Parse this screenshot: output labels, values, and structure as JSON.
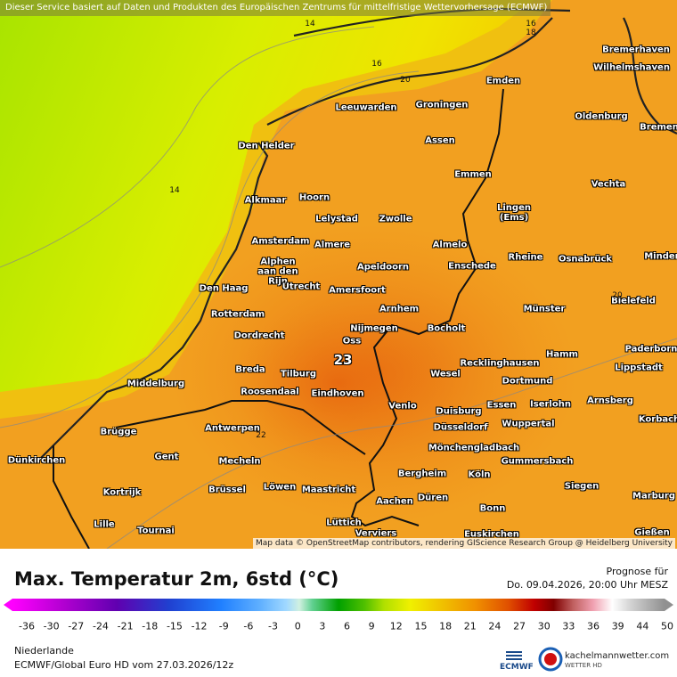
{
  "notice": "Dieser Service basiert auf Daten und Produkten des Europäischen Zentrums für mittelfristige Wettervorhersage (ECMWF)",
  "attribution": "Map data © OpenStreetMap contributors, rendering GIScience Research Group @ Heidelberg University",
  "map_labels": {
    "cities": [
      "Bremerhaven",
      "Wilhelmshaven",
      "Emden",
      "Oldenburg",
      "Bremen",
      "Groningen",
      "Leeuwarden",
      "Assen",
      "Den Helder",
      "Emmen",
      "Vechta",
      "Alkmaar",
      "Hoorn",
      "Lingen (Ems)",
      "Lelystad",
      "Zwolle",
      "Amsterdam",
      "Almere",
      "Almelo",
      "Rheine",
      "Osnabrück",
      "Minden",
      "Alphen aan den Rijn",
      "Apeldoorn",
      "Enschede",
      "Den Haag",
      "Utrecht",
      "Amersfoort",
      "Bielefeld",
      "Arnhem",
      "Münster",
      "Rotterdam",
      "Nijmegen",
      "Bocholt",
      "Dordrecht",
      "Oss",
      "Paderborn",
      "Hamm",
      "Breda",
      "Tilburg",
      "Recklinghausen",
      "Wesel",
      "Lippstadt",
      "Middelburg",
      "Roosendaal",
      "Eindhoven",
      "Dortmund",
      "Arnsberg",
      "Venlo",
      "Essen",
      "Iserlohn",
      "Duisburg",
      "Korbach",
      "Wuppertal",
      "Brügge",
      "Antwerpen",
      "Düsseldorf",
      "Mönchengladbach",
      "Gent",
      "Mecheln",
      "Gummersbach",
      "Dünkirchen",
      "Kortrijk",
      "Brüssel",
      "Löwen",
      "Maastricht",
      "Bergheim",
      "Köln",
      "Siegen",
      "Marburg",
      "Düren",
      "Aachen",
      "Bonn",
      "Lille",
      "Tournai",
      "Lüttich",
      "Verviers",
      "Euskirchen",
      "Gießen"
    ],
    "contours": [
      14,
      16,
      20,
      14,
      22,
      23,
      16,
      18,
      20
    ]
  },
  "legend": {
    "title": "Max. Temperatur 2m, 6std (°C)",
    "ticks": [
      -36,
      -30,
      -27,
      -24,
      -21,
      -18,
      -15,
      -12,
      -9,
      -6,
      -3,
      0,
      3,
      6,
      9,
      12,
      15,
      18,
      21,
      24,
      27,
      30,
      33,
      36,
      39,
      44,
      50
    ]
  },
  "forecast": {
    "label": "Prognose für",
    "time": "Do. 09.04.2026, 20:00 Uhr MESZ"
  },
  "footer": {
    "region": "Niederlande",
    "model": "ECMWF/Global Euro HD vom  27.03.2026/12z"
  },
  "logos": {
    "ecmwf": "ECMWF",
    "site": "kachelmannwetter.com",
    "tagline": "WETTER HD"
  }
}
